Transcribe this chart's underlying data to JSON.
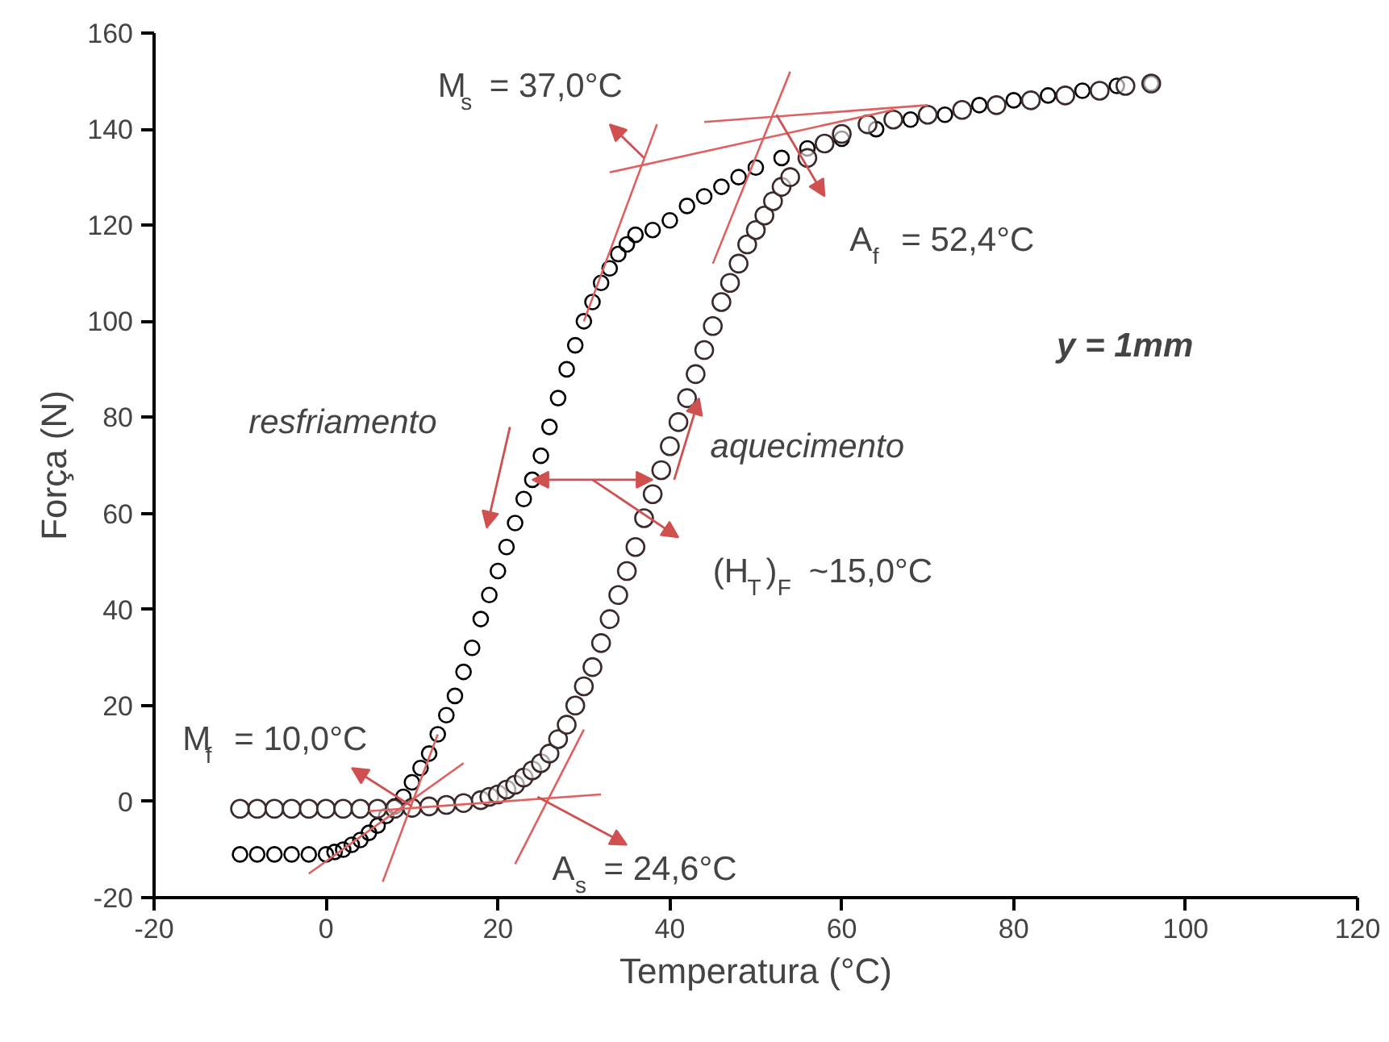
{
  "chart_data": {
    "type": "scatter",
    "xlabel": "Temperatura (°C)",
    "ylabel": "Força (N)",
    "xlim": [
      -20,
      120
    ],
    "xticks": [
      -20,
      0,
      20,
      40,
      60,
      80,
      100,
      120
    ],
    "ylim": [
      -20,
      160
    ],
    "yticks": [
      -20,
      0,
      20,
      40,
      60,
      80,
      100,
      120,
      140,
      160
    ],
    "grid": false,
    "marker": "circle",
    "series": [
      {
        "color": "#000000",
        "x": [
          -10,
          -8,
          -6,
          -4,
          -2,
          0,
          1,
          2,
          3,
          4,
          5,
          6,
          7,
          8,
          9,
          10,
          11,
          12,
          13,
          14,
          15,
          16,
          17,
          18,
          19,
          20,
          21,
          22,
          23,
          24,
          25,
          26,
          27,
          28,
          29,
          30,
          31,
          32,
          33,
          34,
          35,
          36,
          38,
          40,
          42,
          44,
          46,
          48,
          50,
          53,
          56,
          60,
          64,
          68,
          72,
          76,
          80,
          84,
          88,
          92,
          96
        ],
        "values": [
          -11,
          -11,
          -11,
          -11,
          -11,
          -11,
          -10.5,
          -10,
          -9,
          -8,
          -6.5,
          -5,
          -3,
          -1,
          1,
          4,
          7,
          10,
          14,
          18,
          22,
          27,
          32,
          38,
          43,
          48,
          53,
          58,
          63,
          67,
          72,
          78,
          84,
          90,
          95,
          100,
          104,
          108,
          111,
          114,
          116,
          118,
          119,
          121,
          124,
          126,
          128,
          130,
          132,
          134,
          136,
          138,
          140,
          142,
          143,
          145,
          146,
          147,
          148,
          149,
          149.5
        ]
      },
      {
        "color": "#3a2a2a",
        "x": [
          -10,
          -8,
          -6,
          -4,
          -2,
          0,
          2,
          4,
          6,
          8,
          10,
          12,
          14,
          16,
          18,
          19,
          20,
          21,
          22,
          23,
          24,
          25,
          26,
          27,
          28,
          29,
          30,
          31,
          32,
          33,
          34,
          35,
          36,
          37,
          38,
          39,
          40,
          41,
          42,
          43,
          44,
          45,
          46,
          47,
          48,
          49,
          50,
          51,
          52,
          53,
          54,
          56,
          58,
          60,
          63,
          66,
          70,
          74,
          78,
          82,
          86,
          90,
          93,
          96
        ],
        "values": [
          -1.5,
          -1.5,
          -1.5,
          -1.5,
          -1.5,
          -1.5,
          -1.5,
          -1.5,
          -1.5,
          -1.5,
          -1.3,
          -1,
          -0.7,
          -0.3,
          0.3,
          1,
          1.5,
          2.5,
          3.5,
          5,
          6.5,
          8,
          10,
          13,
          16,
          20,
          24,
          28,
          33,
          38,
          43,
          48,
          53,
          59,
          64,
          69,
          74,
          79,
          84,
          89,
          94,
          99,
          104,
          108,
          112,
          116,
          119,
          122,
          125,
          128,
          130,
          134,
          137,
          139,
          141,
          142,
          143,
          144,
          145,
          146,
          147,
          148,
          149,
          149.5
        ]
      },
      {
        "type": "line",
        "marker": "none",
        "color": "#e06060",
        "x": [
          30,
          38.5
        ],
        "values": [
          100,
          141
        ]
      },
      {
        "type": "line",
        "marker": "none",
        "color": "#e06060",
        "x": [
          33,
          66
        ],
        "values": [
          131,
          144
        ]
      },
      {
        "type": "line",
        "marker": "none",
        "color": "#e06060",
        "x": [
          45,
          54
        ],
        "values": [
          112,
          152
        ]
      },
      {
        "type": "line",
        "marker": "none",
        "color": "#e06060",
        "x": [
          44,
          70
        ],
        "values": [
          141.5,
          145
        ]
      },
      {
        "type": "line",
        "marker": "none",
        "color": "#e06060",
        "x": [
          6.6,
          13
        ],
        "values": [
          -16.7,
          14
        ]
      },
      {
        "type": "line",
        "marker": "none",
        "color": "#e06060",
        "x": [
          -2,
          16
        ],
        "values": [
          -15,
          8
        ]
      },
      {
        "type": "line",
        "marker": "none",
        "color": "#e06060",
        "x": [
          5,
          32
        ],
        "values": [
          -2,
          1.5
        ]
      },
      {
        "type": "line",
        "marker": "none",
        "color": "#e06060",
        "x": [
          22,
          30
        ],
        "values": [
          -13,
          15
        ]
      }
    ],
    "annotations": [
      {
        "text": "M$_{s}$ = 37,0°C",
        "x": 37,
        "y": 134
      },
      {
        "text": "A$_{f}$ = 52,4°C",
        "x": 52.4,
        "y": 143
      },
      {
        "text": "M$_{f}$ = 10,0°C",
        "x": 10,
        "y": -1
      },
      {
        "text": "A$_{s}$ = 24,6°C",
        "x": 24.6,
        "y": 1
      },
      "(H$_{T}$)$_{F}$ ~15,0°C",
      "resfriamento",
      "aquecimento",
      "y = 1mm"
    ]
  }
}
